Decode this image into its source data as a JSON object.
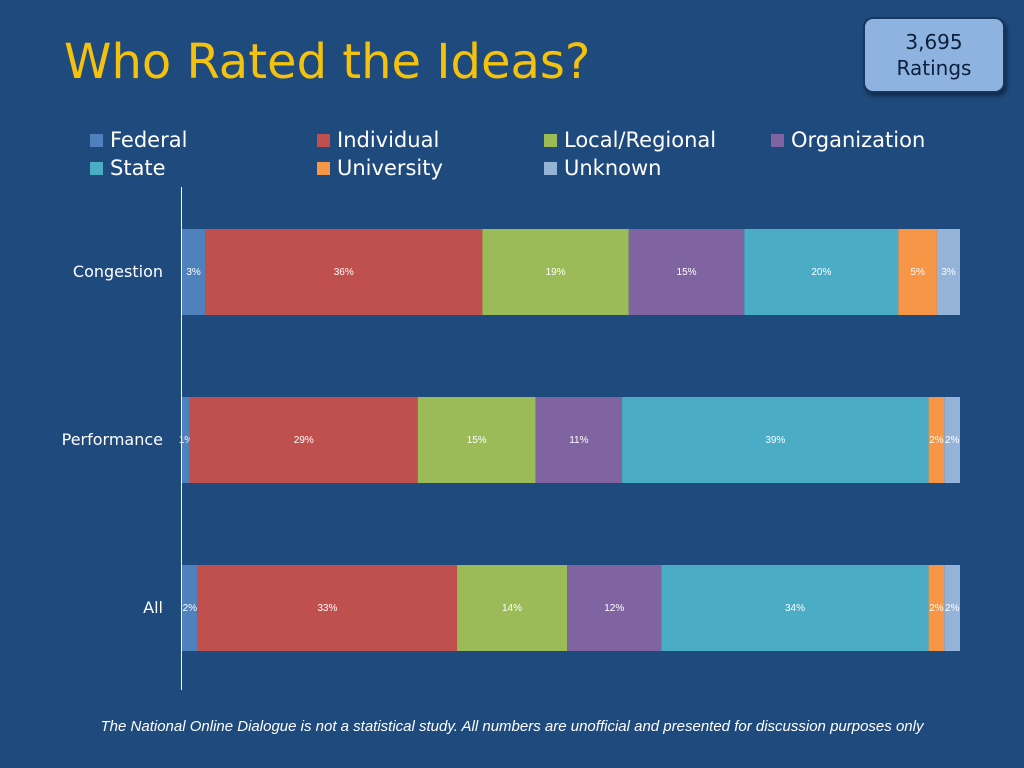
{
  "slide": {
    "title": "Who Rated the Ideas?",
    "badge": {
      "count": "3,695",
      "label": "Ratings"
    },
    "footnote": "The National Online Dialogue is not a statistical study. All numbers are unofficial and presented for discussion purposes only"
  },
  "chart_data": {
    "type": "bar",
    "orientation": "horizontal",
    "stacked": "percent",
    "legend_position": "top",
    "categories": [
      "Congestion",
      "Performance",
      "All"
    ],
    "series": [
      {
        "name": "Federal",
        "color": "#4f81bd",
        "values": [
          3,
          1,
          2
        ],
        "labels": [
          "3%",
          "1%",
          "2%"
        ]
      },
      {
        "name": "Individual",
        "color": "#c0504d",
        "values": [
          36,
          29,
          33
        ],
        "labels": [
          "36%",
          "29%",
          "33%"
        ]
      },
      {
        "name": "Local/Regional",
        "color": "#9bbb59",
        "values": [
          19,
          15,
          14
        ],
        "labels": [
          "19%",
          "15%",
          "14%"
        ]
      },
      {
        "name": "Organization",
        "color": "#8064a2",
        "values": [
          15,
          11,
          12
        ],
        "labels": [
          "15%",
          "11%",
          "12%"
        ]
      },
      {
        "name": "State",
        "color": "#4bacc6",
        "values": [
          20,
          39,
          34
        ],
        "labels": [
          "20%",
          "39%",
          "34%"
        ]
      },
      {
        "name": "University",
        "color": "#f79646",
        "values": [
          5,
          2,
          2
        ],
        "labels": [
          "5%",
          "2%",
          "2%"
        ]
      },
      {
        "name": "Unknown",
        "color": "#95b3d7",
        "values": [
          3,
          2,
          2
        ],
        "labels": [
          "3%",
          "2%",
          "2%"
        ]
      }
    ]
  }
}
